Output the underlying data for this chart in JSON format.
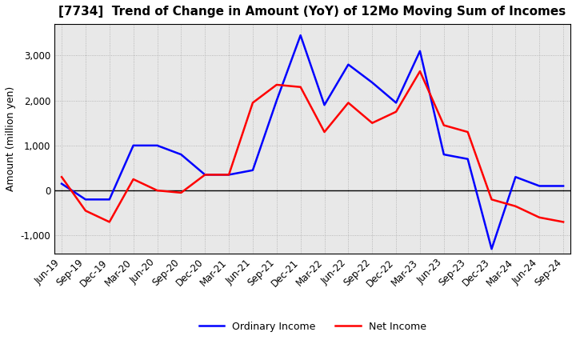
{
  "title": "[7734]  Trend of Change in Amount (YoY) of 12Mo Moving Sum of Incomes",
  "ylabel": "Amount (million yen)",
  "ylim": [
    -1400,
    3700
  ],
  "yticks": [
    -1000,
    0,
    1000,
    2000,
    3000
  ],
  "x_labels": [
    "Jun-19",
    "Sep-19",
    "Dec-19",
    "Mar-20",
    "Jun-20",
    "Sep-20",
    "Dec-20",
    "Mar-21",
    "Jun-21",
    "Sep-21",
    "Dec-21",
    "Mar-22",
    "Jun-22",
    "Sep-22",
    "Dec-22",
    "Mar-23",
    "Jun-23",
    "Sep-23",
    "Dec-23",
    "Mar-24",
    "Jun-24",
    "Sep-24"
  ],
  "ordinary_income": [
    150,
    -200,
    -200,
    1000,
    1000,
    800,
    350,
    350,
    450,
    2000,
    3450,
    1900,
    2800,
    2400,
    1950,
    3100,
    800,
    700,
    -1300,
    300,
    100,
    100
  ],
  "net_income": [
    300,
    -450,
    -700,
    250,
    0,
    -50,
    350,
    350,
    1950,
    2350,
    2300,
    1300,
    1950,
    1500,
    1750,
    2650,
    1450,
    1300,
    -200,
    -350,
    -600,
    -700
  ],
  "ordinary_income_color": "#0000FF",
  "net_income_color": "#FF0000",
  "line_width": 1.8,
  "grid_color": "#AAAAAA",
  "bg_plot_color": "#E8E8E8",
  "background_color": "#FFFFFF",
  "legend_labels": [
    "Ordinary Income",
    "Net Income"
  ],
  "title_fontsize": 11,
  "tick_fontsize": 8.5,
  "ylabel_fontsize": 9
}
